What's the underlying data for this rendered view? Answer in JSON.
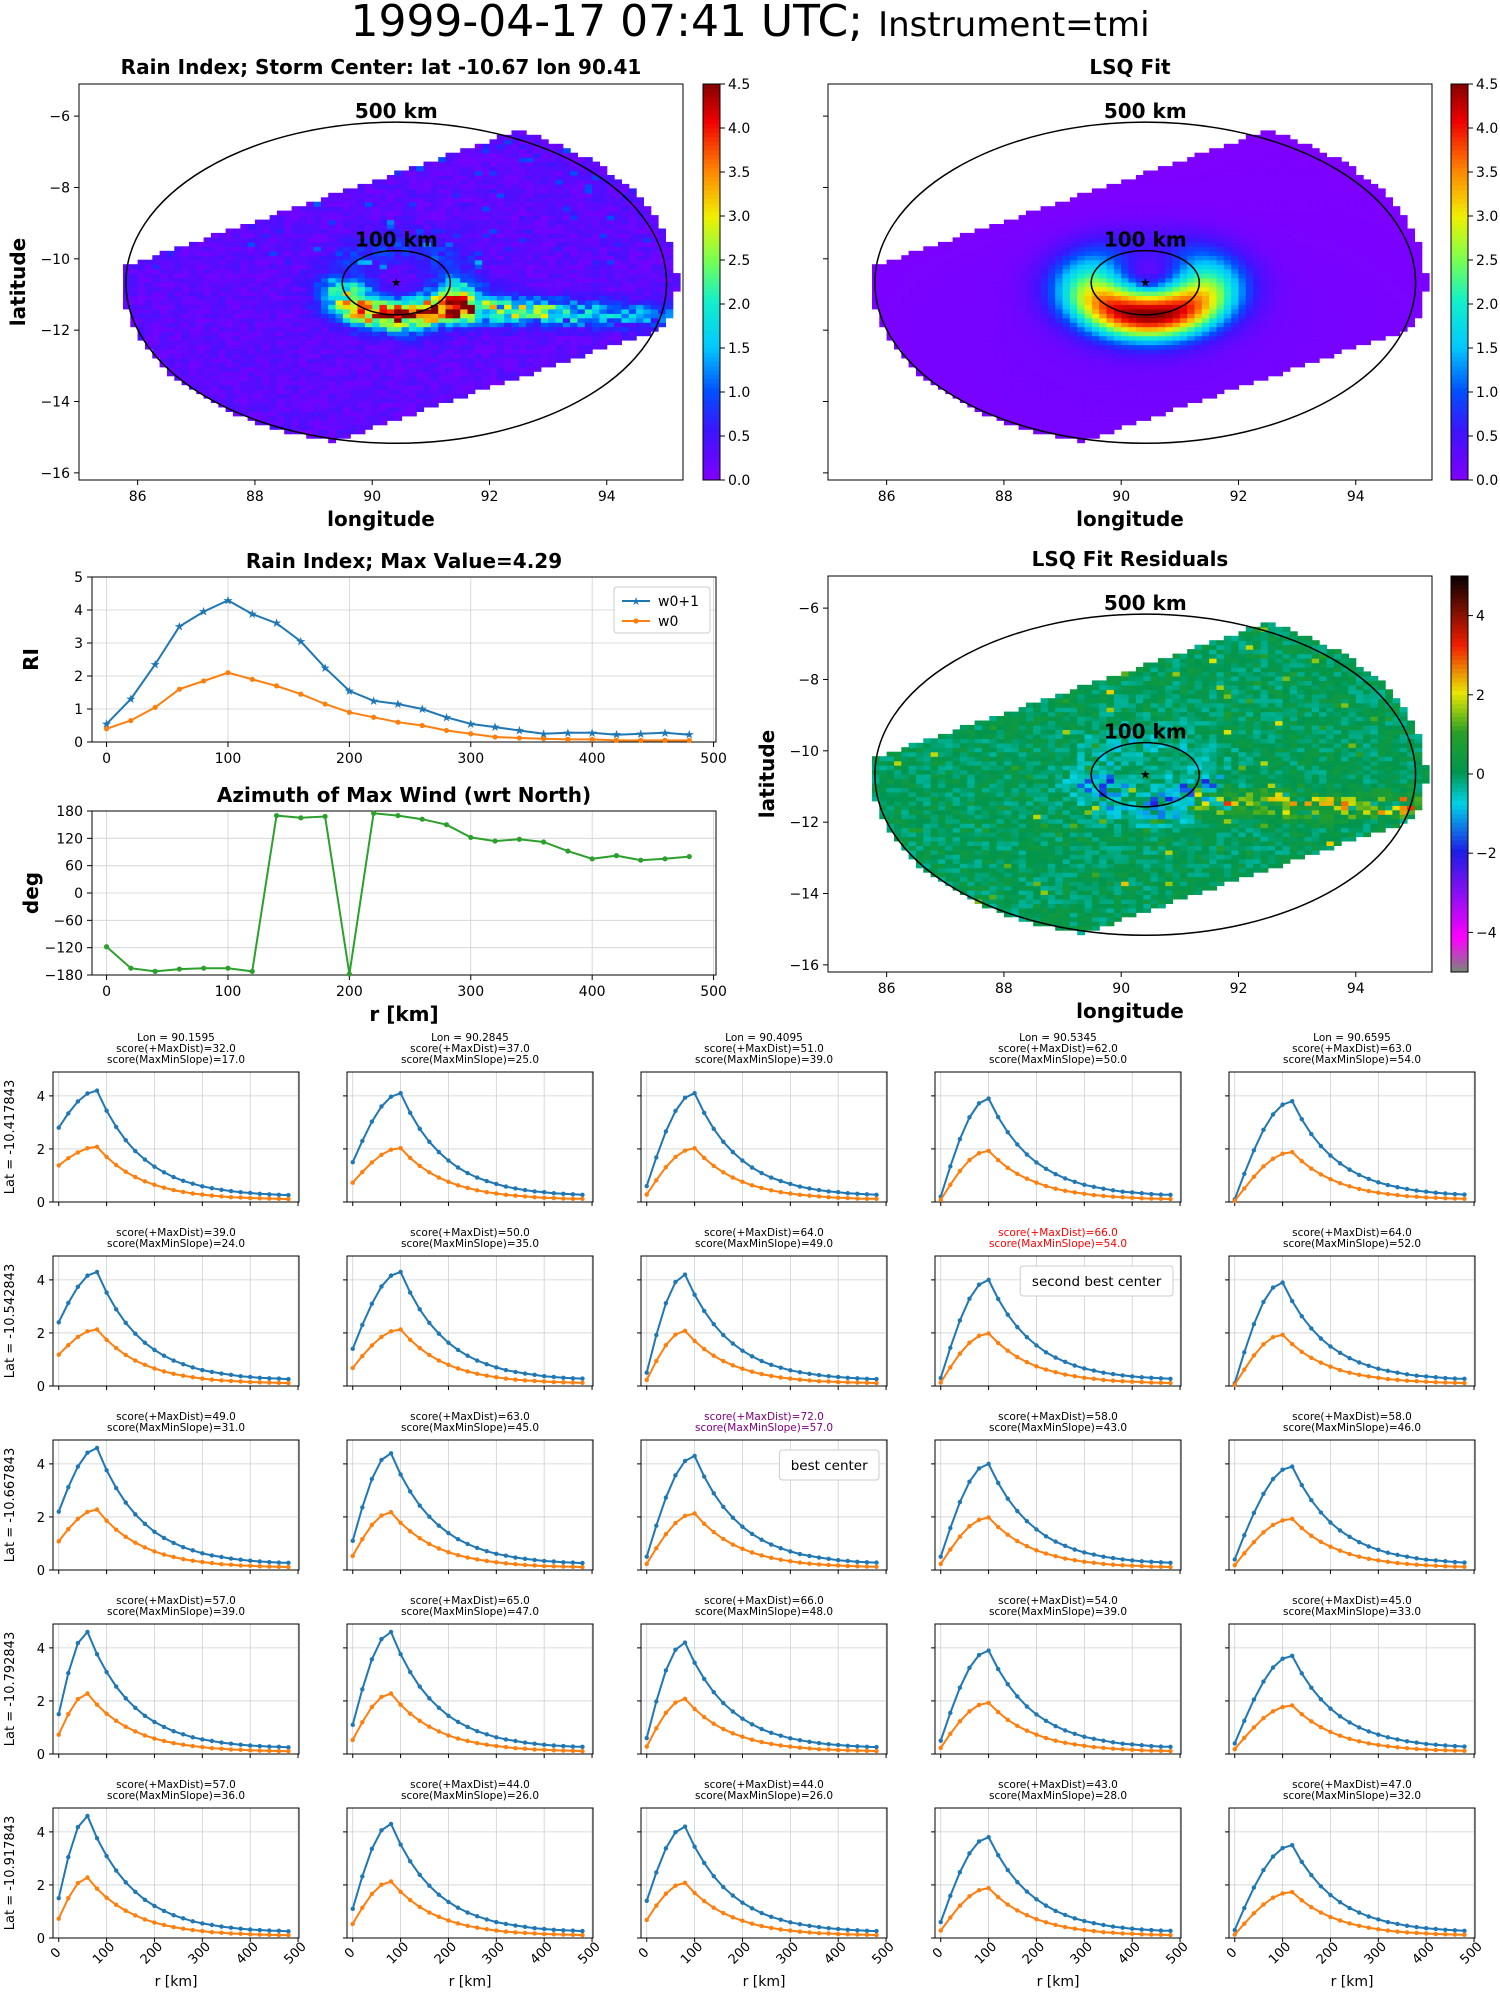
{
  "suptitle_main": "1999-04-17 07:41 UTC;",
  "suptitle_instr": "Instrument=tmi",
  "map_panels": [
    {
      "title": "Rain Index; Storm Center: lat -10.67 lon 90.41",
      "kind": "rain",
      "show_ylabel": true,
      "colorbar": "rain"
    },
    {
      "title": "LSQ Fit",
      "kind": "fit",
      "show_ylabel": false,
      "colorbar": "rain"
    },
    {
      "title": "LSQ Fit Residuals",
      "kind": "resid",
      "show_ylabel": true,
      "colorbar": "resid"
    }
  ],
  "map_axes": {
    "xlabel": "longitude",
    "ylabel": "latitude",
    "xticks": [
      86,
      88,
      90,
      92,
      94
    ],
    "yticks": [
      -6,
      -8,
      -10,
      -12,
      -14,
      -16
    ],
    "xlim": [
      85,
      95.3
    ],
    "ylim": [
      -16.2,
      -5.1
    ],
    "ring_labels": [
      "500 km",
      "100 km"
    ],
    "center": {
      "lat": -10.67,
      "lon": 90.41
    }
  },
  "colorbars": {
    "rain": {
      "ticks": [
        "0.0",
        "0.5",
        "1.0",
        "1.5",
        "2.0",
        "2.5",
        "3.0",
        "3.5",
        "4.0",
        "4.5"
      ],
      "min": 0,
      "max": 4.5
    },
    "resid": {
      "ticks": [
        "−4",
        "−2",
        "0",
        "2",
        "4"
      ],
      "min": -5,
      "max": 5
    }
  },
  "chart_data": [
    {
      "type": "line",
      "title": "Rain Index; Max Value=4.29",
      "ylabel": "RI",
      "x": [
        0,
        20,
        40,
        60,
        80,
        100,
        120,
        140,
        160,
        180,
        200,
        220,
        240,
        260,
        280,
        300,
        320,
        340,
        360,
        380,
        400,
        420,
        440,
        460,
        480
      ],
      "xticks": [
        0,
        100,
        200,
        300,
        400,
        500
      ],
      "yticks": [
        0,
        1,
        2,
        3,
        4,
        5
      ],
      "xlim": [
        -12,
        502
      ],
      "ylim": [
        0,
        5
      ],
      "legend_position": "upper right",
      "series": [
        {
          "name": "w0+1",
          "color": "#1f77b4",
          "marker": "star",
          "values": [
            0.55,
            1.3,
            2.35,
            3.5,
            3.95,
            4.29,
            3.88,
            3.6,
            3.05,
            2.25,
            1.55,
            1.25,
            1.15,
            1.0,
            0.75,
            0.55,
            0.45,
            0.35,
            0.25,
            0.28,
            0.28,
            0.22,
            0.25,
            0.28,
            0.22
          ]
        },
        {
          "name": "w0",
          "color": "#ff7f0e",
          "marker": "dot",
          "values": [
            0.4,
            0.65,
            1.05,
            1.6,
            1.85,
            2.1,
            1.9,
            1.7,
            1.45,
            1.15,
            0.9,
            0.75,
            0.6,
            0.5,
            0.35,
            0.25,
            0.15,
            0.12,
            0.1,
            0.08,
            0.08,
            0.05,
            0.05,
            0.05,
            0.05
          ]
        }
      ]
    },
    {
      "type": "line",
      "title": "Azimuth of Max Wind (wrt North)",
      "xlabel": "r [km]",
      "ylabel": "deg",
      "x": [
        0,
        20,
        40,
        60,
        80,
        100,
        120,
        140,
        160,
        180,
        200,
        220,
        240,
        260,
        280,
        300,
        320,
        340,
        360,
        380,
        400,
        420,
        440,
        460,
        480
      ],
      "xticks": [
        0,
        100,
        200,
        300,
        400,
        500
      ],
      "yticks": [
        "180",
        "120",
        "60",
        "0",
        "−60",
        "−120",
        "−180"
      ],
      "ylim": [
        -180,
        180
      ],
      "xlim": [
        -12,
        502
      ],
      "series": [
        {
          "color": "#2ca02c",
          "values": [
            -118,
            -165,
            -172,
            -167,
            -165,
            -165,
            -172,
            170,
            165,
            168,
            -178,
            175,
            170,
            162,
            150,
            122,
            114,
            118,
            112,
            92,
            75,
            82,
            72,
            75,
            80
          ]
        }
      ]
    },
    {
      "type": "line",
      "x": [
        0,
        20,
        40,
        60,
        80,
        100,
        120,
        140,
        160,
        180,
        200,
        220,
        240,
        260,
        280,
        300,
        320,
        340,
        360,
        380,
        400,
        420,
        440,
        460,
        480
      ],
      "xlabel": "r [km]",
      "xticks": [
        0,
        100,
        200,
        300,
        400,
        500
      ],
      "yticks": [
        0,
        2,
        4
      ],
      "ylim": [
        0,
        4.9
      ],
      "xlim": [
        -12,
        502
      ],
      "rows": [
        {
          "lat_label": "Lat = -10.417843",
          "cells": [
            {
              "header": "Lon = 90.1595",
              "score1": "score(+MaxDist)=32.0",
              "score2": "score(MaxMinSlope)=17.0",
              "peak_r": 80,
              "peak": 4.2,
              "start": 2.8
            },
            {
              "header": "Lon = 90.2845",
              "score1": "score(+MaxDist)=37.0",
              "score2": "score(MaxMinSlope)=25.0",
              "peak_r": 100,
              "peak": 4.1,
              "start": 1.5
            },
            {
              "header": "Lon = 90.4095",
              "score1": "score(+MaxDist)=51.0",
              "score2": "score(MaxMinSlope)=39.0",
              "peak_r": 100,
              "peak": 4.1,
              "start": 0.6
            },
            {
              "header": "Lon = 90.5345",
              "score1": "score(+MaxDist)=62.0",
              "score2": "score(MaxMinSlope)=50.0",
              "peak_r": 100,
              "peak": 3.9,
              "start": 0.2
            },
            {
              "header": "Lon = 90.6595",
              "score1": "score(+MaxDist)=63.0",
              "score2": "score(MaxMinSlope)=54.0",
              "peak_r": 120,
              "peak": 3.8,
              "start": 0.1
            }
          ]
        },
        {
          "lat_label": "Lat = -10.542843",
          "cells": [
            {
              "score1": "score(+MaxDist)=39.0",
              "score2": "score(MaxMinSlope)=24.0",
              "peak_r": 80,
              "peak": 4.3,
              "start": 2.4
            },
            {
              "score1": "score(+MaxDist)=50.0",
              "score2": "score(MaxMinSlope)=35.0",
              "peak_r": 100,
              "peak": 4.3,
              "start": 1.4
            },
            {
              "score1": "score(+MaxDist)=64.0",
              "score2": "score(MaxMinSlope)=49.0",
              "peak_r": 80,
              "peak": 4.2,
              "start": 0.5
            },
            {
              "score1": "score(+MaxDist)=66.0",
              "score2": "score(MaxMinSlope)=54.0",
              "peak_r": 100,
              "peak": 4.0,
              "start": 0.3,
              "color": "#ff0000",
              "note": "second best center"
            },
            {
              "score1": "score(+MaxDist)=64.0",
              "score2": "score(MaxMinSlope)=52.0",
              "peak_r": 100,
              "peak": 3.9,
              "start": 0.1
            }
          ]
        },
        {
          "lat_label": "Lat = -10.667843",
          "cells": [
            {
              "score1": "score(+MaxDist)=49.0",
              "score2": "score(MaxMinSlope)=31.0",
              "peak_r": 80,
              "peak": 4.6,
              "start": 2.2
            },
            {
              "score1": "score(+MaxDist)=63.0",
              "score2": "score(MaxMinSlope)=45.0",
              "peak_r": 80,
              "peak": 4.4,
              "start": 1.1
            },
            {
              "score1": "score(+MaxDist)=72.0",
              "score2": "score(MaxMinSlope)=57.0",
              "peak_r": 100,
              "peak": 4.3,
              "start": 0.5,
              "color": "#800080",
              "note": "best center"
            },
            {
              "score1": "score(+MaxDist)=58.0",
              "score2": "score(MaxMinSlope)=43.0",
              "peak_r": 100,
              "peak": 4.0,
              "start": 0.5
            },
            {
              "score1": "score(+MaxDist)=58.0",
              "score2": "score(MaxMinSlope)=46.0",
              "peak_r": 120,
              "peak": 3.9,
              "start": 0.4
            }
          ]
        },
        {
          "lat_label": "Lat = -10.792843",
          "cells": [
            {
              "score1": "score(+MaxDist)=57.0",
              "score2": "score(MaxMinSlope)=39.0",
              "peak_r": 60,
              "peak": 4.6,
              "start": 1.5
            },
            {
              "score1": "score(+MaxDist)=65.0",
              "score2": "score(MaxMinSlope)=47.0",
              "peak_r": 80,
              "peak": 4.6,
              "start": 1.1
            },
            {
              "score1": "score(+MaxDist)=66.0",
              "score2": "score(MaxMinSlope)=48.0",
              "peak_r": 80,
              "peak": 4.2,
              "start": 0.6
            },
            {
              "score1": "score(+MaxDist)=54.0",
              "score2": "score(MaxMinSlope)=39.0",
              "peak_r": 100,
              "peak": 3.9,
              "start": 0.5
            },
            {
              "score1": "score(+MaxDist)=45.0",
              "score2": "score(MaxMinSlope)=33.0",
              "peak_r": 120,
              "peak": 3.7,
              "start": 0.4
            }
          ]
        },
        {
          "lat_label": "Lat = -10.917843",
          "cells": [
            {
              "score1": "score(+MaxDist)=57.0",
              "score2": "score(MaxMinSlope)=36.0",
              "peak_r": 60,
              "peak": 4.6,
              "start": 1.5
            },
            {
              "score1": "score(+MaxDist)=44.0",
              "score2": "score(MaxMinSlope)=26.0",
              "peak_r": 80,
              "peak": 4.3,
              "start": 1.1
            },
            {
              "score1": "score(+MaxDist)=44.0",
              "score2": "score(MaxMinSlope)=26.0",
              "peak_r": 80,
              "peak": 4.2,
              "start": 1.4
            },
            {
              "score1": "score(+MaxDist)=43.0",
              "score2": "score(MaxMinSlope)=28.0",
              "peak_r": 100,
              "peak": 3.8,
              "start": 0.6
            },
            {
              "score1": "score(+MaxDist)=47.0",
              "score2": "score(MaxMinSlope)=32.0",
              "peak_r": 120,
              "peak": 3.5,
              "start": 0.3
            }
          ]
        }
      ]
    }
  ]
}
